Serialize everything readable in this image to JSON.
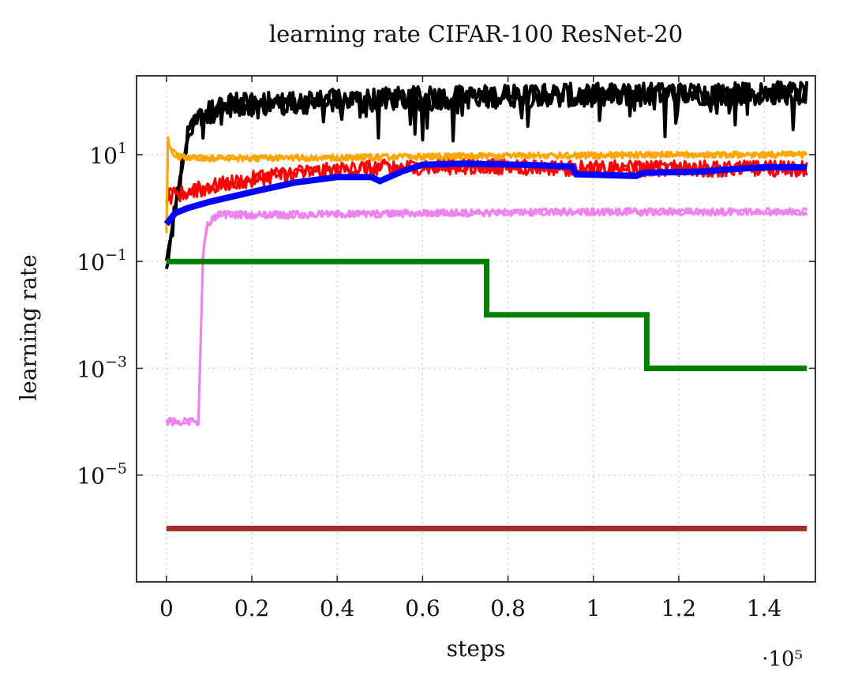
{
  "chart_data": {
    "type": "line",
    "title": "learning rate CIFAR-100 ResNet-20",
    "xlabel": "steps",
    "ylabel": "learning rate",
    "x_multiplier": "·10⁵",
    "x_range": [
      0,
      150000
    ],
    "xlim": [
      -7000,
      152000
    ],
    "y_scale": "log",
    "ylim": [
      1e-07,
      300
    ],
    "x_ticks": [
      0,
      20000,
      40000,
      60000,
      80000,
      100000,
      120000,
      140000
    ],
    "x_tick_labels": [
      "0",
      "0.2",
      "0.4",
      "0.6",
      "0.8",
      "1",
      "1.2",
      "1.4"
    ],
    "y_ticks": [
      1e-05,
      0.001,
      0.1,
      10
    ],
    "y_tick_labels": [
      {
        "base": "10",
        "exp": "−5"
      },
      {
        "base": "10",
        "exp": "−3"
      },
      {
        "base": "10",
        "exp": "−1"
      },
      {
        "base": "10",
        "exp": "1"
      }
    ],
    "grid": true,
    "series": [
      {
        "color": "#000000",
        "style": "noisy",
        "noise_decades": 0.22,
        "points": [
          [
            0,
            0.1
          ],
          [
            1500,
            0.5
          ],
          [
            3000,
            3
          ],
          [
            5000,
            20
          ],
          [
            8000,
            55
          ],
          [
            15000,
            85
          ],
          [
            30000,
            95
          ],
          [
            50000,
            110
          ],
          [
            70000,
            120
          ],
          [
            90000,
            130
          ],
          [
            110000,
            135
          ],
          [
            130000,
            140
          ],
          [
            150000,
            145
          ]
        ]
      },
      {
        "color": "#ff0000",
        "style": "noisy",
        "noise_decades": 0.15,
        "points": [
          [
            0,
            1.6
          ],
          [
            5000,
            2.0
          ],
          [
            10000,
            2.5
          ],
          [
            20000,
            3.5
          ],
          [
            30000,
            4.5
          ],
          [
            45000,
            5.5
          ],
          [
            60000,
            6.0
          ],
          [
            80000,
            6.0
          ],
          [
            100000,
            5.5
          ],
          [
            120000,
            5.5
          ],
          [
            150000,
            5.5
          ]
        ]
      },
      {
        "color": "#ffa500",
        "style": "noisy",
        "noise_decades": 0.06,
        "points": [
          [
            0,
            0.35
          ],
          [
            300,
            20
          ],
          [
            1000,
            12
          ],
          [
            3000,
            9
          ],
          [
            10000,
            8.5
          ],
          [
            40000,
            8.8
          ],
          [
            80000,
            9.5
          ],
          [
            120000,
            10
          ],
          [
            150000,
            10
          ]
        ]
      },
      {
        "color": "#0000ff",
        "style": "smooth",
        "points": [
          [
            0,
            0.5
          ],
          [
            2000,
            0.8
          ],
          [
            5000,
            1.0
          ],
          [
            10000,
            1.3
          ],
          [
            20000,
            2.0
          ],
          [
            30000,
            3.0
          ],
          [
            40000,
            3.8
          ],
          [
            48000,
            3.8
          ],
          [
            50000,
            3.2
          ],
          [
            55000,
            4.8
          ],
          [
            60000,
            6.5
          ],
          [
            70000,
            6.8
          ],
          [
            85000,
            6.4
          ],
          [
            95000,
            6.0
          ],
          [
            96000,
            4.3
          ],
          [
            110000,
            4.0
          ],
          [
            112000,
            4.6
          ],
          [
            125000,
            4.8
          ],
          [
            130000,
            5.2
          ],
          [
            140000,
            5.8
          ],
          [
            150000,
            5.8
          ]
        ]
      },
      {
        "color": "#ee82ee",
        "style": "noisy",
        "noise_decades": 0.07,
        "points": [
          [
            0,
            0.0001
          ],
          [
            7500,
            0.0001
          ],
          [
            8000,
            0.003
          ],
          [
            8600,
            0.15
          ],
          [
            9500,
            0.5
          ],
          [
            12000,
            0.75
          ],
          [
            30000,
            0.75
          ],
          [
            60000,
            0.8
          ],
          [
            100000,
            0.85
          ],
          [
            150000,
            0.85
          ]
        ]
      },
      {
        "color": "#008000",
        "style": "step",
        "points": [
          [
            0,
            0.1
          ],
          [
            75000,
            0.1
          ],
          [
            75000,
            0.01
          ],
          [
            112500,
            0.01
          ],
          [
            112500,
            0.001
          ],
          [
            150000,
            0.001
          ]
        ]
      },
      {
        "color": "#a52a2a",
        "style": "flat",
        "points": [
          [
            0,
            1e-06
          ],
          [
            150000,
            1e-06
          ]
        ]
      }
    ]
  }
}
